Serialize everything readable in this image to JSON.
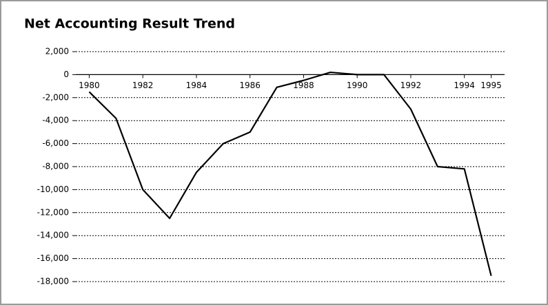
{
  "chart_data": {
    "type": "line",
    "title": "Net Accounting Result Trend",
    "x": [
      1980,
      1981,
      1982,
      1983,
      1984,
      1985,
      1986,
      1987,
      1988,
      1989,
      1990,
      1991,
      1992,
      1993,
      1994,
      1995
    ],
    "series": [
      {
        "color": "#000000",
        "values": [
          -1500,
          -3800,
          -10000,
          -12500,
          -8500,
          -6000,
          -5000,
          -1100,
          -500,
          200,
          0,
          0,
          -3000,
          -8000,
          -8200,
          -17500
        ]
      }
    ],
    "xlim": [
      1979.5,
      1995.5
    ],
    "xticks": [
      1980,
      1982,
      1984,
      1986,
      1988,
      1990,
      1992,
      1994,
      1995
    ],
    "ylim": [
      -18000,
      2000
    ],
    "yticks": [
      {
        "value": 2000,
        "label": "2,000"
      },
      0,
      {
        "value": -2000,
        "label": "-2,000"
      },
      {
        "value": -4000,
        "label": "-4,000"
      },
      {
        "value": -6000,
        "label": "-6,000"
      },
      {
        "value": -8000,
        "label": "-8,000"
      },
      {
        "value": -10000,
        "label": "-10,000"
      },
      {
        "value": -12000,
        "label": "-12,000"
      },
      {
        "value": -14000,
        "label": "-14,000"
      },
      {
        "value": -16000,
        "label": "-16,000"
      },
      {
        "value": -18000,
        "label": "-18,000"
      }
    ],
    "grid": true
  }
}
